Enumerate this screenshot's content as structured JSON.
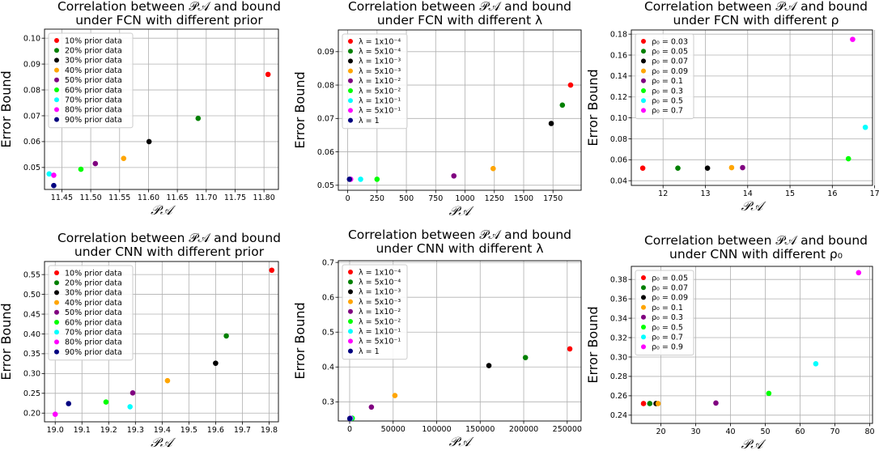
{
  "chart_data": [
    {
      "type": "scatter",
      "title_lines": [
        "Correlation between 𝒫𝒜 and bound",
        "under FCN with different prior"
      ],
      "xlabel": "𝒫𝒜",
      "ylabel": "Error Bound",
      "xlim": [
        11.42,
        11.825
      ],
      "ylim": [
        0.0415,
        0.1035
      ],
      "xticks": [
        "11.45",
        "11.50",
        "11.55",
        "11.60",
        "11.65",
        "11.70",
        "11.75",
        "11.80"
      ],
      "xtick_values": [
        11.45,
        11.5,
        11.55,
        11.6,
        11.65,
        11.7,
        11.75,
        11.8
      ],
      "yticks": [
        "0.05",
        "0.06",
        "0.07",
        "0.08",
        "0.09",
        "0.10"
      ],
      "ytick_values": [
        0.05,
        0.06,
        0.07,
        0.08,
        0.09,
        0.1
      ],
      "grid": true,
      "legend_position": "top-left",
      "series": [
        {
          "name": "10% prior data",
          "color": "#ff0000",
          "x": 11.807,
          "y": 0.086
        },
        {
          "name": "20% prior data",
          "color": "#008000",
          "x": 11.686,
          "y": 0.069
        },
        {
          "name": "30% prior data",
          "color": "#000000",
          "x": 11.601,
          "y": 0.06
        },
        {
          "name": "40% prior data",
          "color": "#ffa500",
          "x": 11.557,
          "y": 0.0535
        },
        {
          "name": "50% prior data",
          "color": "#800080",
          "x": 11.508,
          "y": 0.0515
        },
        {
          "name": "60% prior data",
          "color": "#00ff00",
          "x": 11.483,
          "y": 0.0493
        },
        {
          "name": "70% prior data",
          "color": "#00ffff",
          "x": 11.428,
          "y": 0.0475
        },
        {
          "name": "80% prior data",
          "color": "#ff00ff",
          "x": 11.436,
          "y": 0.047
        },
        {
          "name": "90% prior data",
          "color": "#000080",
          "x": 11.436,
          "y": 0.043
        }
      ]
    },
    {
      "type": "scatter",
      "title_lines": [
        "Correlation between 𝒫𝒜 and bound",
        "under FCN with different λ"
      ],
      "xlabel": "𝒫𝒜",
      "ylabel": "Error Bound",
      "xlim": [
        -80,
        1990
      ],
      "ylim": [
        0.0485,
        0.0965
      ],
      "xticks": [
        "0",
        "250",
        "500",
        "750",
        "1000",
        "1250",
        "1500",
        "1750"
      ],
      "xtick_values": [
        0,
        250,
        500,
        750,
        1000,
        1250,
        1500,
        1750
      ],
      "yticks": [
        "0.05",
        "0.06",
        "0.07",
        "0.08",
        "0.09"
      ],
      "ytick_values": [
        0.05,
        0.06,
        0.07,
        0.08,
        0.09
      ],
      "grid": true,
      "legend_position": "top-left",
      "series": [
        {
          "name": "λ = 1x10⁻⁴",
          "color": "#ff0000",
          "x": 1900,
          "y": 0.08
        },
        {
          "name": "λ = 5x10⁻⁴",
          "color": "#008000",
          "x": 1830,
          "y": 0.074
        },
        {
          "name": "λ = 1x10⁻³",
          "color": "#000000",
          "x": 1735,
          "y": 0.0685
        },
        {
          "name": "λ = 5x10⁻³",
          "color": "#ffa500",
          "x": 1240,
          "y": 0.055
        },
        {
          "name": "λ = 1x10⁻²",
          "color": "#800080",
          "x": 905,
          "y": 0.0528
        },
        {
          "name": "λ = 5x10⁻²",
          "color": "#00ff00",
          "x": 250,
          "y": 0.0518
        },
        {
          "name": "λ = 1x10⁻¹",
          "color": "#00ffff",
          "x": 110,
          "y": 0.0518
        },
        {
          "name": "λ = 5x10⁻¹",
          "color": "#ff00ff",
          "x": 25,
          "y": 0.0518
        },
        {
          "name": "λ = 1",
          "color": "#000080",
          "x": 15,
          "y": 0.0518
        }
      ]
    },
    {
      "type": "scatter",
      "title_lines": [
        "Correlation between 𝒫𝒜 and bound",
        "under FCN with different ρ"
      ],
      "xlabel": "𝒫𝒜",
      "ylabel": "Error Bound",
      "xlim": [
        11.25,
        16.95
      ],
      "ylim": [
        0.0355,
        0.184
      ],
      "xticks": [
        "12",
        "13",
        "14",
        "15",
        "16",
        "17"
      ],
      "xtick_values": [
        12,
        13,
        14,
        15,
        16,
        17
      ],
      "yticks": [
        "0.04",
        "0.06",
        "0.08",
        "0.10",
        "0.12",
        "0.14",
        "0.16",
        "0.18"
      ],
      "ytick_values": [
        0.04,
        0.06,
        0.08,
        0.1,
        0.12,
        0.14,
        0.16,
        0.18
      ],
      "grid": true,
      "legend_position": "top-left",
      "series": [
        {
          "name": "ρ₀ = 0.03",
          "color": "#ff0000",
          "x": 11.52,
          "y": 0.052
        },
        {
          "name": "ρ₀ = 0.05",
          "color": "#008000",
          "x": 12.35,
          "y": 0.052
        },
        {
          "name": "ρ₀ = 0.07",
          "color": "#000000",
          "x": 13.05,
          "y": 0.052
        },
        {
          "name": "ρ₀ = 0.09",
          "color": "#ffa500",
          "x": 13.62,
          "y": 0.0525
        },
        {
          "name": "ρ₀ = 0.1",
          "color": "#800080",
          "x": 13.88,
          "y": 0.0525
        },
        {
          "name": "ρ₀ = 0.3",
          "color": "#00ff00",
          "x": 16.38,
          "y": 0.061
        },
        {
          "name": "ρ₀ = 0.5",
          "color": "#00ffff",
          "x": 16.78,
          "y": 0.091
        },
        {
          "name": "ρ₀ = 0.7",
          "color": "#ff00ff",
          "x": 16.48,
          "y": 0.175
        }
      ]
    },
    {
      "type": "scatter",
      "title_lines": [
        "Correlation between 𝒫𝒜 and bound",
        "under CNN with different prior"
      ],
      "xlabel": "𝒫𝒜",
      "ylabel": "Error Bound",
      "xlim": [
        18.96,
        19.835
      ],
      "ylim": [
        0.178,
        0.583
      ],
      "xticks": [
        "19.0",
        "19.1",
        "19.2",
        "19.3",
        "19.4",
        "19.5",
        "19.6",
        "19.7",
        "19.8"
      ],
      "xtick_values": [
        19.0,
        19.1,
        19.2,
        19.3,
        19.4,
        19.5,
        19.6,
        19.7,
        19.8
      ],
      "yticks": [
        "0.20",
        "0.25",
        "0.30",
        "0.35",
        "0.40",
        "0.45",
        "0.50",
        "0.55"
      ],
      "ytick_values": [
        0.2,
        0.25,
        0.3,
        0.35,
        0.4,
        0.45,
        0.5,
        0.55
      ],
      "grid": true,
      "legend_position": "top-left",
      "series": [
        {
          "name": "10% prior data",
          "color": "#ff0000",
          "x": 19.81,
          "y": 0.561
        },
        {
          "name": "20% prior data",
          "color": "#008000",
          "x": 19.64,
          "y": 0.395
        },
        {
          "name": "30% prior data",
          "color": "#000000",
          "x": 19.6,
          "y": 0.326
        },
        {
          "name": "40% prior data",
          "color": "#ffa500",
          "x": 19.42,
          "y": 0.282
        },
        {
          "name": "50% prior data",
          "color": "#800080",
          "x": 19.29,
          "y": 0.251
        },
        {
          "name": "60% prior data",
          "color": "#00ff00",
          "x": 19.19,
          "y": 0.228
        },
        {
          "name": "70% prior data",
          "color": "#00ffff",
          "x": 19.28,
          "y": 0.216
        },
        {
          "name": "80% prior data",
          "color": "#ff00ff",
          "x": 19.0,
          "y": 0.197
        },
        {
          "name": "90% prior data",
          "color": "#000080",
          "x": 19.05,
          "y": 0.224
        }
      ]
    },
    {
      "type": "scatter",
      "title_lines": [
        "Correlation between 𝒫𝒜 and bound",
        "under CNN with different λ"
      ],
      "xlabel": "𝒫𝒜",
      "ylabel": "Error Bound",
      "xlim": [
        -13000,
        266000
      ],
      "ylim": [
        0.245,
        0.705
      ],
      "xticks": [
        "0",
        "50000",
        "100000",
        "150000",
        "200000",
        "250000"
      ],
      "xtick_values": [
        0,
        50000,
        100000,
        150000,
        200000,
        250000
      ],
      "yticks": [
        "0.3",
        "0.4",
        "0.5",
        "0.6",
        "0.7"
      ],
      "ytick_values": [
        0.3,
        0.4,
        0.5,
        0.6,
        0.7
      ],
      "grid": true,
      "legend_position": "top-left",
      "series": [
        {
          "name": "λ = 1x10⁻⁴",
          "color": "#ff0000",
          "x": 253000,
          "y": 0.452
        },
        {
          "name": "λ = 5x10⁻⁴",
          "color": "#008000",
          "x": 202000,
          "y": 0.427
        },
        {
          "name": "λ = 1x10⁻³",
          "color": "#000000",
          "x": 160000,
          "y": 0.404
        },
        {
          "name": "λ = 5x10⁻³",
          "color": "#ffa500",
          "x": 52000,
          "y": 0.318
        },
        {
          "name": "λ = 1x10⁻²",
          "color": "#800080",
          "x": 25000,
          "y": 0.285
        },
        {
          "name": "λ = 5x10⁻²",
          "color": "#00ff00",
          "x": 3000,
          "y": 0.253
        },
        {
          "name": "λ = 1x10⁻¹",
          "color": "#00ffff",
          "x": 1500,
          "y": 0.253
        },
        {
          "name": "λ = 5x10⁻¹",
          "color": "#ff00ff",
          "x": 800,
          "y": 0.253
        },
        {
          "name": "λ = 1",
          "color": "#000080",
          "x": 200,
          "y": 0.252
        }
      ]
    },
    {
      "type": "scatter",
      "title_lines": [
        "Correlation between 𝒫𝒜 and bound",
        "under CNN with different ρ₀"
      ],
      "xlabel": "𝒫𝒜",
      "ylabel": "Error Bound",
      "xlim": [
        11.5,
        80.8
      ],
      "ylim": [
        0.2315,
        0.3935
      ],
      "xticks": [
        "20",
        "30",
        "40",
        "50",
        "60",
        "70",
        "80"
      ],
      "xtick_values": [
        20,
        30,
        40,
        50,
        60,
        70,
        80
      ],
      "yticks": [
        "0.24",
        "0.26",
        "0.28",
        "0.30",
        "0.32",
        "0.34",
        "0.36",
        "0.38"
      ],
      "ytick_values": [
        0.24,
        0.26,
        0.28,
        0.3,
        0.32,
        0.34,
        0.36,
        0.38
      ],
      "grid": true,
      "legend_position": "top-left",
      "series": [
        {
          "name": "ρ₀ = 0.05",
          "color": "#ff0000",
          "x": 15.0,
          "y": 0.252
        },
        {
          "name": "ρ₀ = 0.07",
          "color": "#008000",
          "x": 16.8,
          "y": 0.252
        },
        {
          "name": "ρ₀ = 0.09",
          "color": "#000000",
          "x": 18.6,
          "y": 0.252
        },
        {
          "name": "ρ₀ = 0.1",
          "color": "#ffa500",
          "x": 19.2,
          "y": 0.252
        },
        {
          "name": "ρ₀ = 0.3",
          "color": "#800080",
          "x": 35.8,
          "y": 0.2525
        },
        {
          "name": "ρ₀ = 0.5",
          "color": "#00ff00",
          "x": 51.0,
          "y": 0.2625
        },
        {
          "name": "ρ₀ = 0.7",
          "color": "#00ffff",
          "x": 64.5,
          "y": 0.293
        },
        {
          "name": "ρ₀ = 0.9",
          "color": "#ff00ff",
          "x": 76.8,
          "y": 0.387
        }
      ]
    }
  ]
}
